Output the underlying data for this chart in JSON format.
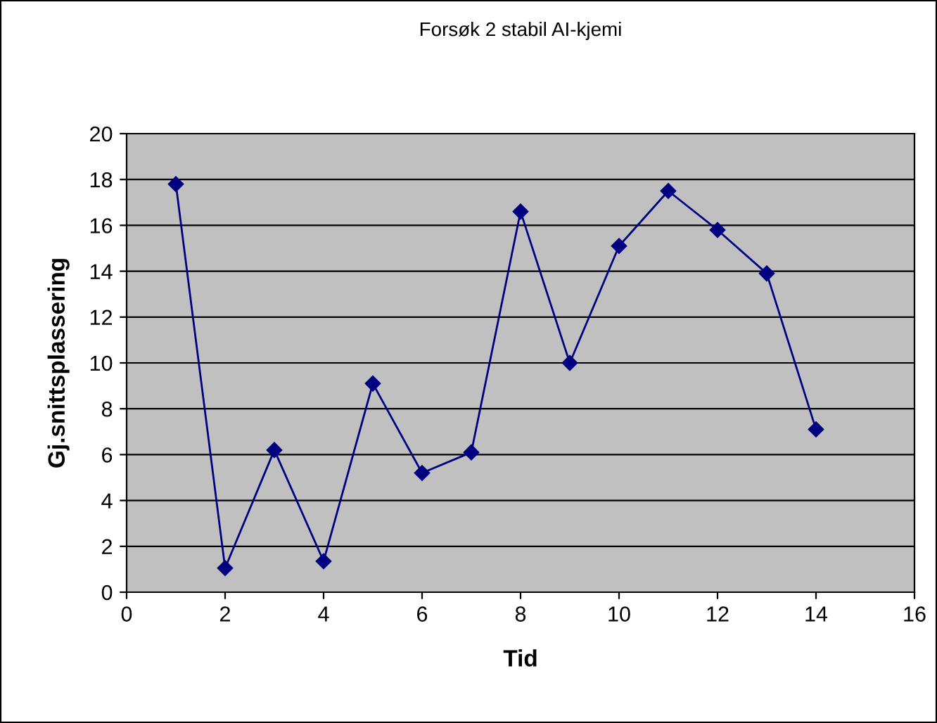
{
  "chart_data": {
    "type": "line",
    "title": "Forsøk 2 stabil AI-kjemi",
    "xlabel": "Tid",
    "ylabel": "Gj.snittsplassering",
    "x": [
      1,
      2,
      3,
      4,
      5,
      6,
      7,
      8,
      9,
      10,
      11,
      12,
      13,
      14
    ],
    "series": [
      {
        "color": "#000080",
        "values": [
          17.8,
          1.05,
          6.2,
          1.35,
          9.1,
          5.2,
          6.1,
          16.6,
          10.0,
          15.1,
          17.5,
          15.8,
          13.9,
          7.1
        ]
      }
    ],
    "xlim": [
      0,
      16
    ],
    "xticks": [
      0,
      2,
      4,
      6,
      8,
      10,
      12,
      14,
      16
    ],
    "ylim": [
      0,
      20
    ],
    "yticks": [
      0,
      2,
      4,
      6,
      8,
      10,
      12,
      14,
      16,
      18,
      20
    ],
    "grid": "y",
    "marker": "diamond",
    "line_style": "solid",
    "legend": false
  }
}
